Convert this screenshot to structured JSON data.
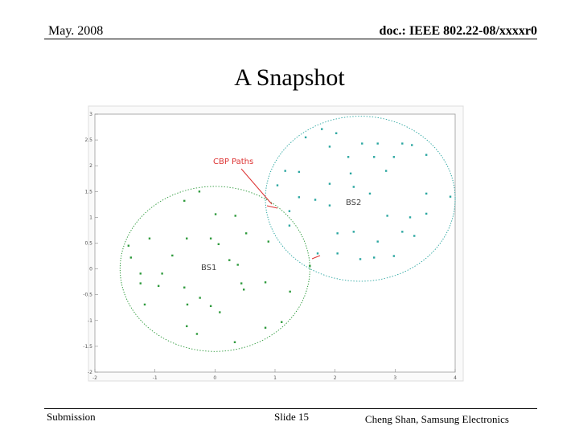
{
  "header": {
    "date": "May. 2008",
    "doc": "doc.: IEEE 802.22-08/xxxxr0"
  },
  "title": "A Snapshot",
  "chart_data": {
    "type": "scatter",
    "annotations": [
      "CBP Paths",
      "BS1",
      "BS2"
    ],
    "xlim": [
      -2,
      4
    ],
    "xticks": [
      -2,
      -1,
      0,
      1,
      2,
      3,
      4
    ],
    "ylim": [
      -2,
      3
    ],
    "yticks": [
      -2,
      -1.5,
      -1,
      -0.5,
      0,
      0.5,
      1,
      1.5,
      2,
      2.5,
      3
    ],
    "series": [
      {
        "name": "BS1",
        "color": "#2e9a3c",
        "x": [
          -0.51,
          0.01,
          0.34,
          -1.09,
          -0.47,
          -0.07,
          0.06,
          -0.71,
          0.24,
          0.38,
          -1.4,
          -1.24,
          -0.94,
          -0.51,
          -0.25,
          0.44,
          0.48,
          0.84,
          1.25,
          -1.17,
          -0.46,
          -0.07,
          0.08,
          -0.47,
          -0.3,
          0.33,
          0.84,
          1.11,
          1.58,
          -1.44,
          -0.26,
          0.89,
          0.52,
          -1.24,
          -0.88
        ],
        "y": [
          1.32,
          1.06,
          1.03,
          0.59,
          0.59,
          0.59,
          0.48,
          0.26,
          0.17,
          0.08,
          0.22,
          -0.28,
          -0.33,
          -0.36,
          -0.56,
          -0.28,
          -0.4,
          -0.26,
          -0.44,
          -0.69,
          -0.69,
          -0.72,
          -0.84,
          -1.11,
          -1.26,
          -1.42,
          -1.14,
          -1.03,
          0.06,
          0.45,
          1.5,
          0.53,
          0.69,
          -0.09,
          -0.09
        ]
      },
      {
        "name": "BS2",
        "color": "#2aa6a0",
        "x": [
          1.51,
          1.78,
          2.02,
          1.91,
          2.45,
          2.71,
          3.12,
          3.28,
          2.22,
          2.65,
          2.98,
          3.52,
          1.17,
          1.4,
          2.26,
          2.85,
          1.91,
          2.31,
          2.58,
          3.52,
          3.92,
          1.4,
          1.67,
          1.91,
          2.87,
          3.25,
          3.52,
          1.24,
          2.04,
          2.31,
          2.71,
          3.12,
          3.32,
          2.65,
          2.42,
          2.98,
          2.04,
          1.71,
          1.24,
          1.04
        ],
        "y": [
          2.55,
          2.71,
          2.63,
          2.37,
          2.43,
          2.43,
          2.43,
          2.4,
          2.17,
          2.17,
          2.17,
          2.21,
          1.9,
          1.88,
          1.85,
          1.9,
          1.65,
          1.59,
          1.46,
          1.46,
          1.4,
          1.39,
          1.34,
          1.23,
          1.03,
          1.0,
          1.07,
          1.12,
          0.69,
          0.72,
          0.53,
          0.72,
          0.64,
          0.22,
          0.19,
          0.25,
          0.3,
          0.3,
          0.84,
          1.62
        ]
      }
    ]
  },
  "footer": {
    "left": "Submission",
    "center": "Slide 15",
    "right": "Cheng Shan, Samsung Electronics"
  }
}
